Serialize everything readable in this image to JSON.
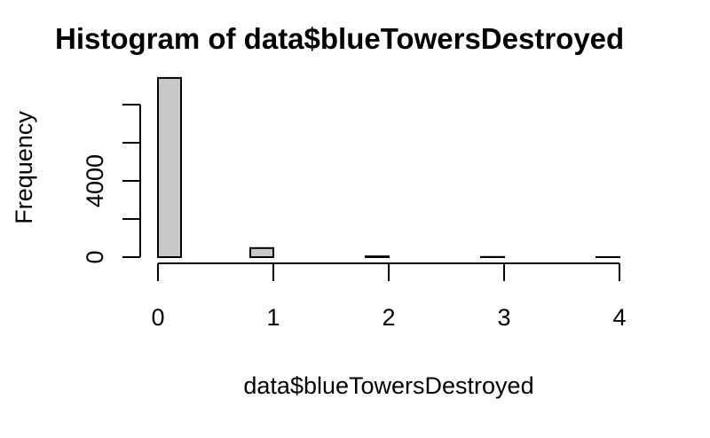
{
  "chart_data": {
    "type": "bar",
    "title": "Histogram of data$blueTowersDestroyed",
    "xlabel": "data$blueTowersDestroyed",
    "ylabel": "Frequency",
    "bin_edges": [
      0,
      0.2,
      0.4,
      0.6,
      0.8,
      1.0,
      1.2,
      1.4,
      1.6,
      1.8,
      2.0,
      2.2,
      2.4,
      2.6,
      2.8,
      3.0,
      3.2,
      3.4,
      3.6,
      3.8,
      4.0
    ],
    "values": [
      9400,
      0,
      0,
      0,
      475,
      0,
      0,
      0,
      0,
      40,
      0,
      0,
      0,
      0,
      10,
      0,
      0,
      0,
      0,
      2
    ],
    "xlim": [
      0,
      4
    ],
    "ylim": [
      0,
      8000
    ],
    "x_ticks": [
      "0",
      "1",
      "2",
      "3",
      "4"
    ],
    "y_ticks": [
      "0",
      "",
      "4000",
      "",
      ""
    ],
    "bar_color": "#c8c8c8",
    "grid": false
  }
}
